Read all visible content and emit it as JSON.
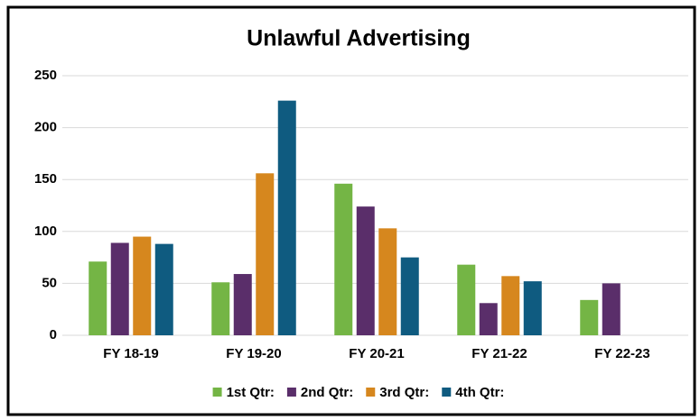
{
  "chart_data": {
    "type": "bar",
    "title": "Unlawful Advertising",
    "categories": [
      "FY 18-19",
      "FY 19-20",
      "FY 20-21",
      "FY 21-22",
      "FY 22-23"
    ],
    "series": [
      {
        "name": "1st Qtr:",
        "color": "#74b545",
        "values": [
          71,
          51,
          146,
          68,
          34
        ]
      },
      {
        "name": "2nd Qtr:",
        "color": "#5a2e6a",
        "values": [
          89,
          59,
          124,
          31,
          50
        ]
      },
      {
        "name": "3rd Qtr:",
        "color": "#d6871e",
        "values": [
          95,
          156,
          103,
          57,
          null
        ]
      },
      {
        "name": "4th Qtr:",
        "color": "#0f5b80",
        "values": [
          88,
          226,
          75,
          52,
          null
        ]
      }
    ],
    "ylim": [
      0,
      250
    ],
    "yticks": [
      0,
      50,
      100,
      150,
      200,
      250
    ],
    "grid": true,
    "legend": "bottom"
  }
}
